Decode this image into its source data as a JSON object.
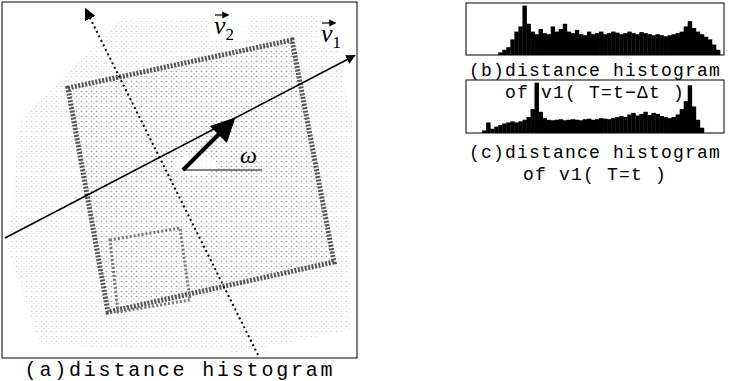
{
  "panels": [
    {
      "caption": "(a)distance histogram",
      "labels": [
        {
          "text": "v",
          "subscript": "2"
        },
        {
          "text": "v",
          "subscript": "1"
        },
        {
          "text": "ω"
        }
      ]
    }
  ],
  "chart_data": [
    {
      "type": "histogram",
      "title": "(b)distance histogram",
      "subtitle": "of v1( T=t−Δt )",
      "bins": [
        0,
        1,
        2,
        3,
        4,
        5,
        6,
        7,
        8,
        9,
        10,
        11,
        12,
        13,
        14,
        15,
        16,
        17,
        18,
        19,
        20,
        21,
        22,
        23,
        24,
        25,
        26,
        27,
        28,
        29,
        30,
        31,
        32,
        33,
        34,
        35,
        36,
        37,
        38,
        39,
        40,
        41,
        42,
        43,
        44,
        45,
        46,
        47,
        48,
        49,
        50,
        51,
        52,
        53,
        54,
        55,
        56,
        57,
        58,
        59,
        60,
        61,
        62,
        63,
        64
      ],
      "values": [
        0,
        0,
        0,
        0,
        0,
        0,
        0,
        0,
        5,
        10,
        15,
        30,
        45,
        55,
        95,
        60,
        45,
        40,
        50,
        42,
        40,
        55,
        45,
        50,
        60,
        45,
        42,
        48,
        40,
        38,
        45,
        40,
        42,
        45,
        40,
        42,
        45,
        43,
        40,
        42,
        45,
        42,
        40,
        44,
        42,
        40,
        38,
        40,
        38,
        36,
        38,
        40,
        42,
        45,
        55,
        65,
        52,
        45,
        40,
        35,
        30,
        20,
        10,
        0
      ],
      "xlim": [
        0,
        64
      ],
      "ylim": [
        0,
        100
      ],
      "color": "#000000",
      "tick_labels": false
    },
    {
      "type": "histogram",
      "title": "(c)distance histogram",
      "subtitle": "of v1( T=t )",
      "bins": [
        0,
        1,
        2,
        3,
        4,
        5,
        6,
        7,
        8,
        9,
        10,
        11,
        12,
        13,
        14,
        15,
        16,
        17,
        18,
        19,
        20,
        21,
        22,
        23,
        24,
        25,
        26,
        27,
        28,
        29,
        30,
        31,
        32,
        33,
        34,
        35,
        36,
        37,
        38,
        39,
        40,
        41,
        42,
        43,
        44,
        45,
        46,
        47,
        48,
        49,
        50,
        51,
        52,
        53,
        54,
        55,
        56,
        57,
        58,
        59,
        60,
        61,
        62,
        63,
        64
      ],
      "values": [
        0,
        0,
        0,
        0,
        5,
        20,
        8,
        12,
        15,
        18,
        20,
        22,
        20,
        22,
        25,
        30,
        45,
        95,
        40,
        28,
        25,
        24,
        25,
        26,
        24,
        25,
        26,
        25,
        24,
        26,
        27,
        25,
        26,
        28,
        27,
        26,
        28,
        30,
        32,
        30,
        35,
        38,
        33,
        36,
        40,
        34,
        38,
        36,
        32,
        30,
        28,
        30,
        35,
        45,
        60,
        90,
        50,
        25,
        10,
        0,
        0,
        0,
        0,
        0
      ],
      "xlim": [
        0,
        64
      ],
      "ylim": [
        0,
        100
      ],
      "color": "#000000",
      "tick_labels": false
    }
  ]
}
